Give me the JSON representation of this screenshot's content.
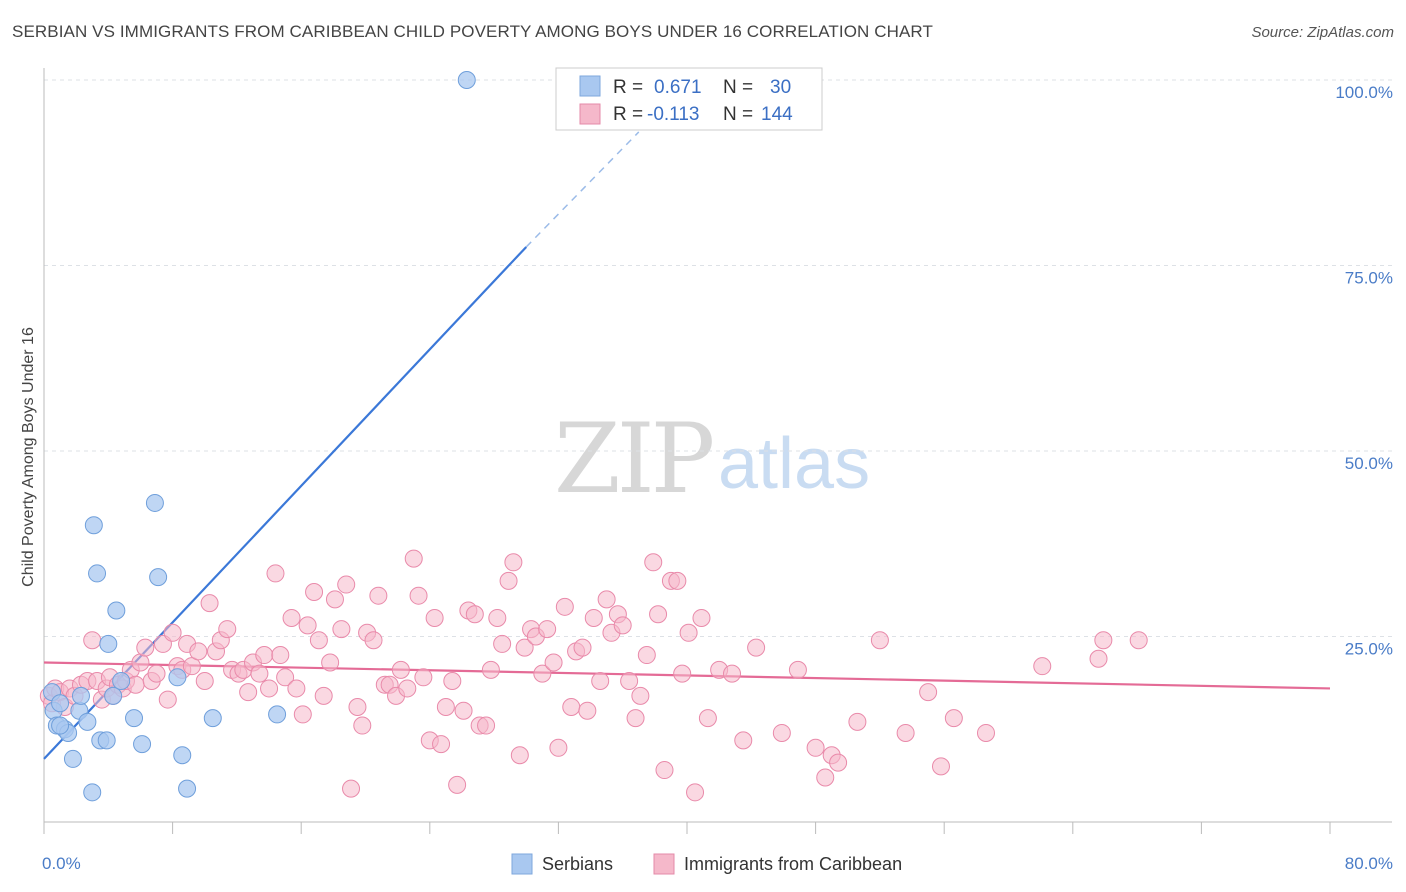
{
  "header": {
    "title": "SERBIAN VS IMMIGRANTS FROM CARIBBEAN CHILD POVERTY AMONG BOYS UNDER 16 CORRELATION CHART",
    "source": "Source: ZipAtlas.com"
  },
  "watermark": {
    "zip": "ZIP",
    "atlas": "atlas"
  },
  "legend": {
    "rows": [
      {
        "r_label": "R =",
        "r_value": "0.671",
        "n_label": "N =",
        "n_value": "30",
        "color": "#a9c8f0"
      },
      {
        "r_label": "R =",
        "r_value": "-0.113",
        "n_label": "N =",
        "n_value": "144",
        "color": "#f5b8ca"
      }
    ]
  },
  "bottom_legend": [
    {
      "label": "Serbians",
      "color": "#a9c8f0"
    },
    {
      "label": "Immigrants from Caribbean",
      "color": "#f5b8ca"
    }
  ],
  "chart_data": {
    "type": "scatter",
    "ylabel": "Child Poverty Among Boys Under 16",
    "xlim": [
      0,
      80
    ],
    "ylim": [
      0,
      100
    ],
    "x_tick_labels": [
      "0.0%",
      "80.0%"
    ],
    "y_tick_values": [
      25,
      50,
      75,
      100
    ],
    "y_tick_labels": [
      "25.0%",
      "50.0%",
      "75.0%",
      "100.0%"
    ],
    "grid": true,
    "series": [
      {
        "name": "Serbians",
        "color": "#6f9fdb",
        "fill": "#a9c8f0",
        "points": [
          [
            0.5,
            17.5
          ],
          [
            0.6,
            15
          ],
          [
            0.8,
            13
          ],
          [
            1,
            16
          ],
          [
            1.3,
            12.5
          ],
          [
            1.5,
            12
          ],
          [
            1.8,
            8.5
          ],
          [
            2.2,
            15
          ],
          [
            2.3,
            17
          ],
          [
            2.7,
            13.5
          ],
          [
            3.1,
            40
          ],
          [
            3.3,
            33.5
          ],
          [
            3.5,
            11
          ],
          [
            3.9,
            11
          ],
          [
            4,
            24
          ],
          [
            4.3,
            17
          ],
          [
            4.5,
            28.5
          ],
          [
            4.8,
            19
          ],
          [
            5.6,
            14
          ],
          [
            6.1,
            10.5
          ],
          [
            6.9,
            43
          ],
          [
            7.1,
            33
          ],
          [
            8.3,
            19.5
          ],
          [
            8.6,
            9
          ],
          [
            8.9,
            4.5
          ],
          [
            10.5,
            14
          ],
          [
            14.5,
            14.5
          ],
          [
            26.3,
            100
          ],
          [
            3,
            4
          ],
          [
            1,
            13
          ]
        ],
        "trend": {
          "x": [
            0,
            30
          ],
          "y": [
            8.5,
            77.5
          ],
          "dashed_to": [
            37,
            93
          ]
        }
      },
      {
        "name": "Immigrants from Caribbean",
        "color": "#e98aaa",
        "fill": "#f5b8ca",
        "points": [
          [
            0.3,
            17
          ],
          [
            0.5,
            16
          ],
          [
            0.7,
            18
          ],
          [
            1,
            17.5
          ],
          [
            1.3,
            15.5
          ],
          [
            1.6,
            18
          ],
          [
            1.9,
            17
          ],
          [
            2.3,
            18.5
          ],
          [
            2.7,
            19
          ],
          [
            3,
            24.5
          ],
          [
            3.3,
            19
          ],
          [
            3.6,
            16.5
          ],
          [
            3.9,
            18
          ],
          [
            4.1,
            19.5
          ],
          [
            4.3,
            17
          ],
          [
            4.6,
            18.5
          ],
          [
            4.9,
            18
          ],
          [
            5.1,
            19
          ],
          [
            5.4,
            20.5
          ],
          [
            5.7,
            18.5
          ],
          [
            6.0,
            21.5
          ],
          [
            6.3,
            23.5
          ],
          [
            6.7,
            19
          ],
          [
            7.0,
            20
          ],
          [
            7.4,
            24
          ],
          [
            7.7,
            16.5
          ],
          [
            8.0,
            25.5
          ],
          [
            8.3,
            21
          ],
          [
            8.6,
            20.5
          ],
          [
            8.9,
            24
          ],
          [
            9.2,
            21
          ],
          [
            9.6,
            23
          ],
          [
            10.0,
            19
          ],
          [
            10.3,
            29.5
          ],
          [
            10.7,
            23
          ],
          [
            11.0,
            24.5
          ],
          [
            11.4,
            26
          ],
          [
            11.7,
            20.5
          ],
          [
            12.1,
            20
          ],
          [
            12.4,
            20.5
          ],
          [
            12.7,
            17.5
          ],
          [
            13.0,
            21.5
          ],
          [
            13.4,
            20
          ],
          [
            13.7,
            22.5
          ],
          [
            14.0,
            18
          ],
          [
            14.4,
            33.5
          ],
          [
            14.7,
            22.5
          ],
          [
            15.0,
            19.5
          ],
          [
            15.4,
            27.5
          ],
          [
            15.7,
            18
          ],
          [
            16.1,
            14.5
          ],
          [
            16.4,
            26.5
          ],
          [
            16.8,
            31
          ],
          [
            17.1,
            24.5
          ],
          [
            17.4,
            17
          ],
          [
            17.8,
            21.5
          ],
          [
            18.1,
            30
          ],
          [
            18.5,
            26
          ],
          [
            18.8,
            32
          ],
          [
            19.1,
            4.5
          ],
          [
            19.5,
            15.5
          ],
          [
            19.8,
            13
          ],
          [
            20.1,
            25.5
          ],
          [
            20.5,
            24.5
          ],
          [
            20.8,
            30.5
          ],
          [
            21.2,
            18.5
          ],
          [
            21.5,
            18.5
          ],
          [
            21.9,
            17
          ],
          [
            22.2,
            20.5
          ],
          [
            22.6,
            18
          ],
          [
            23.0,
            35.5
          ],
          [
            23.3,
            30.5
          ],
          [
            23.6,
            19.5
          ],
          [
            24.0,
            11
          ],
          [
            24.3,
            27.5
          ],
          [
            24.7,
            10.5
          ],
          [
            25.0,
            15.5
          ],
          [
            25.4,
            19
          ],
          [
            25.7,
            5
          ],
          [
            26.1,
            15
          ],
          [
            26.4,
            28.5
          ],
          [
            26.8,
            28
          ],
          [
            27.1,
            13
          ],
          [
            27.5,
            13
          ],
          [
            27.8,
            20.5
          ],
          [
            28.2,
            27.5
          ],
          [
            28.5,
            24
          ],
          [
            28.9,
            32.5
          ],
          [
            29.2,
            35
          ],
          [
            29.6,
            9
          ],
          [
            29.9,
            23.5
          ],
          [
            30.3,
            26
          ],
          [
            30.6,
            25
          ],
          [
            31.0,
            20
          ],
          [
            31.3,
            26
          ],
          [
            31.7,
            21.5
          ],
          [
            32.0,
            10
          ],
          [
            32.4,
            29
          ],
          [
            32.8,
            15.5
          ],
          [
            33.1,
            23
          ],
          [
            33.5,
            23.5
          ],
          [
            33.8,
            15
          ],
          [
            34.2,
            27.5
          ],
          [
            34.6,
            19
          ],
          [
            35.0,
            30
          ],
          [
            35.3,
            25.5
          ],
          [
            35.7,
            28
          ],
          [
            36.0,
            26.5
          ],
          [
            36.4,
            19
          ],
          [
            36.8,
            14
          ],
          [
            37.1,
            17
          ],
          [
            37.5,
            22.5
          ],
          [
            37.9,
            35
          ],
          [
            38.2,
            28
          ],
          [
            38.6,
            7
          ],
          [
            39.0,
            32.5
          ],
          [
            39.4,
            32.5
          ],
          [
            39.7,
            20
          ],
          [
            40.1,
            25.5
          ],
          [
            40.5,
            4
          ],
          [
            40.9,
            27.5
          ],
          [
            41.3,
            14
          ],
          [
            42.0,
            20.5
          ],
          [
            42.8,
            20
          ],
          [
            43.5,
            11
          ],
          [
            44.3,
            23.5
          ],
          [
            45.9,
            12
          ],
          [
            46.9,
            20.5
          ],
          [
            48.0,
            10
          ],
          [
            48.6,
            6
          ],
          [
            49.0,
            9
          ],
          [
            49.4,
            8
          ],
          [
            50.6,
            13.5
          ],
          [
            52.0,
            24.5
          ],
          [
            53.6,
            12
          ],
          [
            55.0,
            17.5
          ],
          [
            55.8,
            7.5
          ],
          [
            56.6,
            14
          ],
          [
            58.6,
            12
          ],
          [
            62.1,
            21
          ],
          [
            65.6,
            22
          ],
          [
            65.9,
            24.5
          ],
          [
            68.1,
            24.5
          ]
        ],
        "trend": {
          "x": [
            0,
            80
          ],
          "y": [
            21.5,
            18
          ]
        }
      }
    ]
  }
}
